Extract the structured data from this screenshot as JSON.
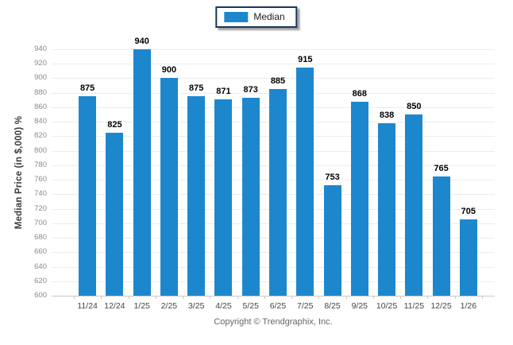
{
  "legend": {
    "position": "top-center"
  },
  "footer": {
    "copyright": "Copyright © Trendgraphix, Inc."
  },
  "chart_data": {
    "type": "bar",
    "categories": [
      "11/24",
      "12/24",
      "1/25",
      "2/25",
      "3/25",
      "4/25",
      "5/25",
      "6/25",
      "7/25",
      "8/25",
      "9/25",
      "10/25",
      "11/25",
      "12/25",
      "1/26"
    ],
    "series": [
      {
        "name": "Median",
        "values": [
          875,
          825,
          940,
          900,
          875,
          871,
          873,
          885,
          915,
          753,
          868,
          838,
          850,
          765,
          705
        ]
      }
    ],
    "title": "",
    "xlabel": "",
    "ylabel": "Median Price (in $,000) %",
    "ylim": [
      600,
      940
    ],
    "ytick_step": 20,
    "grid": true,
    "legend_position": "top-center",
    "bar_color": "#1d87ce"
  }
}
